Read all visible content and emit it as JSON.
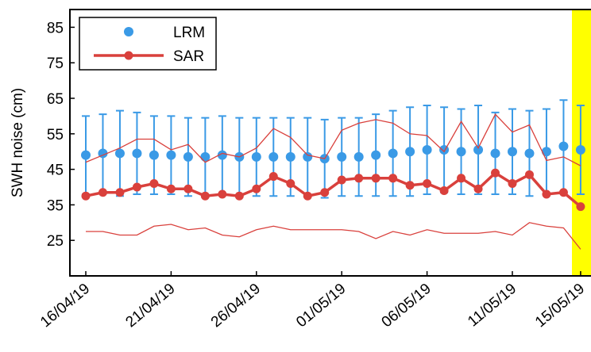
{
  "chart_data": {
    "type": "line",
    "y_label": "SWH noise (cm)",
    "x": [
      "16/04/19",
      "17/04/19",
      "18/04/19",
      "19/04/19",
      "20/04/19",
      "21/04/19",
      "22/04/19",
      "23/04/19",
      "24/04/19",
      "25/04/19",
      "26/04/19",
      "27/04/19",
      "28/04/19",
      "29/04/19",
      "30/04/19",
      "01/05/19",
      "02/05/19",
      "03/05/19",
      "04/05/19",
      "05/05/19",
      "06/05/19",
      "07/05/19",
      "08/05/19",
      "09/05/19",
      "10/05/19",
      "11/05/19",
      "12/05/19",
      "13/05/19",
      "14/05/19",
      "15/05/19"
    ],
    "xticks": [
      "16/04/19",
      "21/04/19",
      "26/04/19",
      "01/05/19",
      "06/05/19",
      "11/05/19",
      "15/05/19"
    ],
    "ylim": [
      15,
      90
    ],
    "yticks": [
      25,
      35,
      45,
      55,
      65,
      75,
      85
    ],
    "legend": "upper-left",
    "series": [
      {
        "name": "LRM",
        "color": "#3a9ae6",
        "style": "points-error",
        "values": [
          49,
          49.5,
          49.5,
          49.5,
          49,
          49,
          48.5,
          48.5,
          49,
          48.5,
          48.5,
          48.5,
          48.5,
          48.5,
          48,
          48.5,
          48.5,
          49,
          49.5,
          50,
          50.5,
          50.5,
          50,
          50.5,
          49.5,
          50,
          49.5,
          50,
          51.5,
          50.5
        ],
        "error": [
          11,
          11,
          12,
          11.5,
          11,
          11,
          11,
          11,
          11,
          11,
          11,
          11,
          11,
          11,
          11,
          11,
          11,
          11.5,
          12,
          12.5,
          12.5,
          12,
          12,
          12.5,
          11.5,
          12,
          12,
          12,
          13,
          12.5
        ]
      },
      {
        "name": "SAR",
        "color": "#d9403c",
        "style": "line-markers",
        "values": [
          37.5,
          38.5,
          38.5,
          40,
          41,
          39.5,
          39.5,
          37.5,
          38,
          37.5,
          39.5,
          43,
          41,
          37.5,
          38.5,
          42,
          42.5,
          42.5,
          42.5,
          40.5,
          41,
          39,
          42.5,
          39.5,
          44,
          41,
          43.5,
          38,
          38.5,
          34.5
        ],
        "upper": [
          47,
          49,
          51,
          53.5,
          53.5,
          50.5,
          52,
          47,
          49.5,
          48.5,
          51,
          56.5,
          54,
          49,
          48,
          56,
          58,
          59,
          58,
          55,
          54.5,
          50,
          58.5,
          51,
          60.5,
          55.5,
          57.5,
          47.5,
          48.5,
          46
        ],
        "lower": [
          27.5,
          27.5,
          26.5,
          26.5,
          29,
          29.5,
          28,
          28.5,
          26.5,
          26,
          28,
          29,
          28,
          28,
          28,
          28,
          27.5,
          25.5,
          27.5,
          26.5,
          28,
          27,
          27,
          27,
          27.5,
          26.5,
          30,
          29,
          28.5,
          22.5
        ]
      }
    ]
  }
}
